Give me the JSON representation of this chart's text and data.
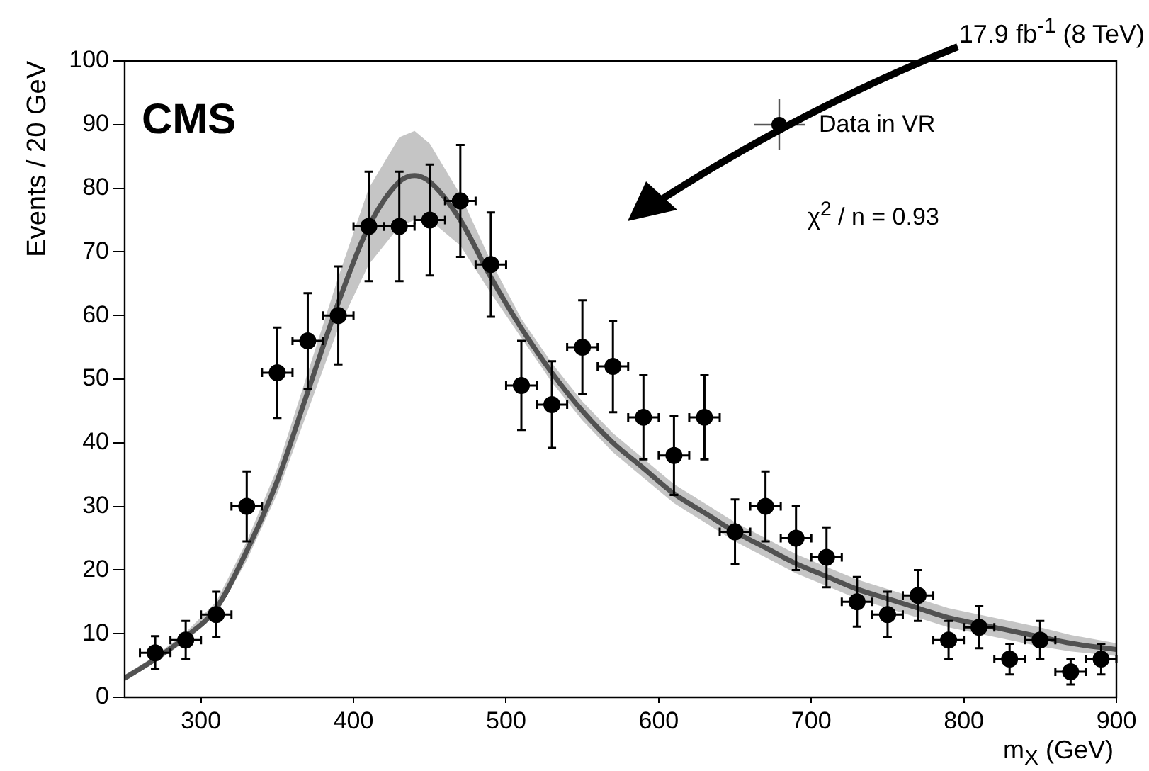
{
  "chart_data": {
    "type": "scatter",
    "xlabel": "m$_{X}$ (GeV)",
    "ylabel": "Events / 20 GeV",
    "annotations": [
      "CMS",
      "χ$^{2}$ / n = 0.93",
      "17.9 fb$^{-1}$ (8 TeV)"
    ],
    "xlim": [
      250,
      900
    ],
    "xticks": [
      300,
      400,
      500,
      600,
      700,
      800,
      900
    ],
    "ylim": [
      0,
      100
    ],
    "yticks": [
      0,
      10,
      20,
      30,
      40,
      50,
      60,
      70,
      80,
      90,
      100
    ],
    "grid": false,
    "legend": "top right",
    "series": [
      {
        "name": "Data in VR",
        "marker": "circle",
        "color": "#000000",
        "x": [
          270,
          290,
          310,
          330,
          350,
          370,
          390,
          410,
          430,
          450,
          470,
          490,
          510,
          530,
          550,
          570,
          590,
          610,
          630,
          650,
          670,
          690,
          710,
          730,
          750,
          770,
          790,
          810,
          830,
          850,
          870,
          890
        ],
        "values": [
          7,
          9,
          13,
          30,
          51,
          56,
          60,
          74,
          74,
          75,
          78,
          68,
          49,
          46,
          55,
          52,
          44,
          38,
          44,
          26,
          30,
          25,
          22,
          15,
          13,
          16,
          9,
          11,
          6,
          9,
          4,
          6
        ],
        "errors": [
          2.6,
          3.0,
          3.6,
          5.5,
          7.1,
          7.5,
          7.7,
          8.6,
          8.6,
          8.7,
          8.8,
          8.2,
          7.0,
          6.8,
          7.4,
          7.2,
          6.6,
          6.2,
          6.6,
          5.1,
          5.5,
          5.0,
          4.7,
          3.9,
          3.6,
          4.0,
          3.0,
          3.3,
          2.4,
          3.0,
          2.0,
          2.4
        ],
        "xerrors": [
          10,
          10,
          10,
          10,
          10,
          10,
          10,
          10,
          10,
          10,
          10,
          10,
          10,
          10,
          10,
          10,
          10,
          10,
          10,
          10,
          10,
          10,
          10,
          10,
          10,
          10,
          10,
          10,
          10,
          10,
          10,
          10
        ]
      },
      {
        "type": "line",
        "marker": "none",
        "color": "#000000",
        "x": [
          250,
          270,
          290,
          310,
          330,
          350,
          370,
          390,
          410,
          430,
          440,
          450,
          470,
          490,
          510,
          530,
          550,
          570,
          590,
          610,
          630,
          650,
          670,
          690,
          710,
          730,
          750,
          770,
          790,
          810,
          830,
          850,
          870,
          900
        ],
        "values": [
          3,
          6,
          9.5,
          14,
          23,
          34,
          48,
          62,
          74,
          81,
          82,
          81,
          75,
          66,
          58,
          51,
          45,
          40,
          36,
          32,
          29,
          26,
          23.5,
          21,
          19,
          17,
          15.5,
          14,
          12.5,
          11.5,
          10.5,
          9.5,
          8.5,
          7.5
        ],
        "lower": [
          2.5,
          5.5,
          8.8,
          13,
          21.5,
          32,
          45,
          58,
          68,
          74,
          75,
          75,
          71,
          63.5,
          56.5,
          49.5,
          43.5,
          38.5,
          34.5,
          30.5,
          27.5,
          24.5,
          22,
          19.5,
          17.5,
          15.5,
          14,
          12.5,
          11,
          10,
          9,
          8,
          7.2,
          6.5
        ],
        "upper": [
          3.5,
          6.5,
          10.2,
          15,
          24.5,
          36,
          51,
          66,
          80,
          88,
          89,
          87,
          79,
          68.5,
          59.5,
          52.5,
          46.5,
          41.5,
          37.5,
          33.5,
          30.5,
          27.5,
          25,
          22.5,
          20.5,
          18.5,
          17,
          15.5,
          14,
          13,
          12,
          11,
          9.8,
          8.5
        ]
      }
    ]
  }
}
